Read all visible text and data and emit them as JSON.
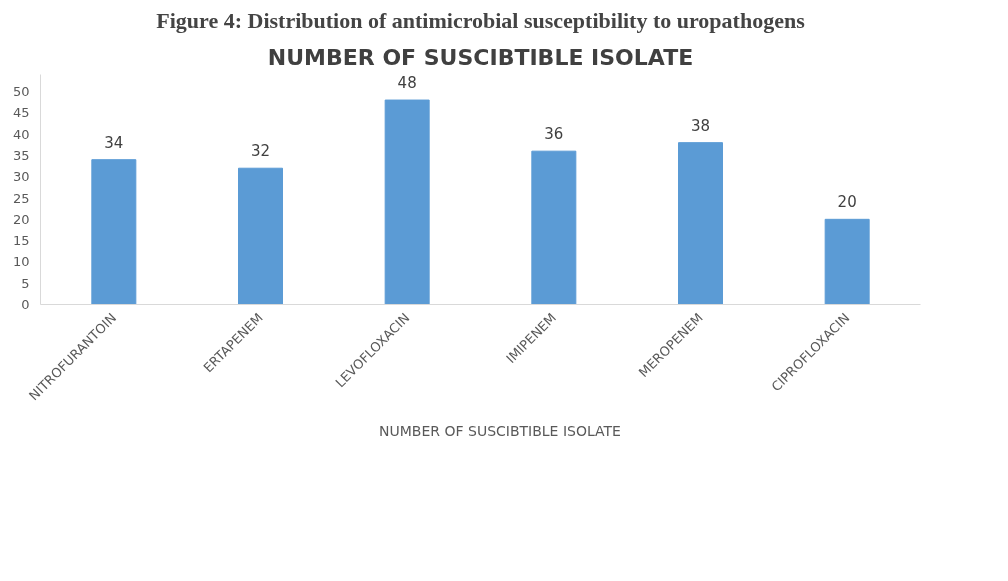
{
  "chart_data": {
    "type": "bar",
    "title": "NUMBER OF SUSCIBTIBLE ISOLATE",
    "annotations": [
      "Figure 4: Distribution of antimicrobial susceptibility to uropathogens"
    ],
    "categories": [
      "NITROFURANTOIN",
      "ERTAPENEM",
      "LEVOFLOXACIN",
      "IMIPENEM",
      "MEROPENEM",
      "CIPROFLOXACIN"
    ],
    "series": [
      {
        "name": "NUMBER OF SUSCIBTIBLE ISOLATE",
        "color": "#5b9bd5",
        "values": [
          34,
          32,
          48,
          36,
          38,
          20
        ]
      }
    ],
    "ylim": [
      0,
      54
    ],
    "yticks": [
      0,
      5,
      10,
      15,
      20,
      25,
      30,
      35,
      40,
      45,
      50
    ],
    "data_labels": true,
    "grid": false,
    "legend": "bottom"
  }
}
